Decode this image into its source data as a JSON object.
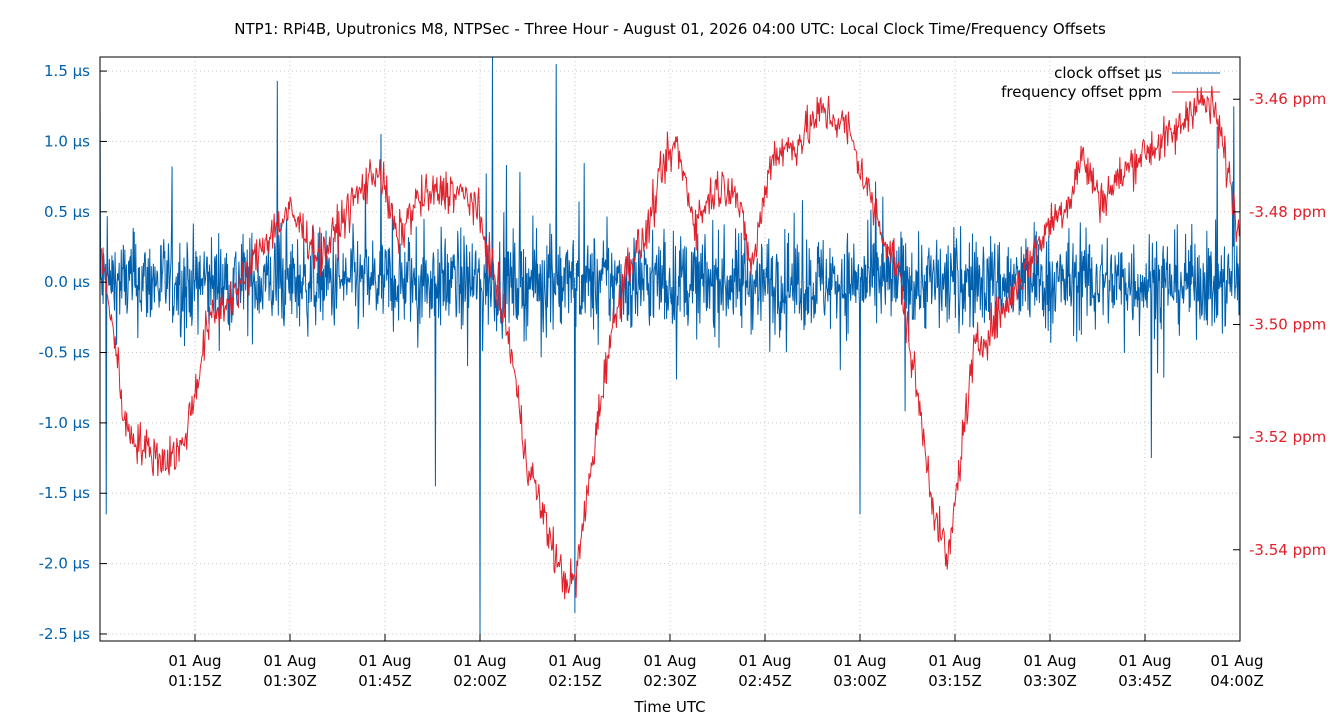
{
  "chart_data": {
    "type": "line",
    "title": "NTP1: RPi4B, Uputronics M8, NTPSec - Three Hour - August 01, 2026 04:00 UTC: Local Clock Time/Frequency Offsets",
    "xlabel": "Time UTC",
    "x_range": [
      "2026-08-01T01:00Z",
      "2026-08-01T04:00Z"
    ],
    "x_ticks": [
      {
        "date": "01 Aug",
        "time": "01:15Z"
      },
      {
        "date": "01 Aug",
        "time": "01:30Z"
      },
      {
        "date": "01 Aug",
        "time": "01:45Z"
      },
      {
        "date": "01 Aug",
        "time": "02:00Z"
      },
      {
        "date": "01 Aug",
        "time": "02:15Z"
      },
      {
        "date": "01 Aug",
        "time": "02:30Z"
      },
      {
        "date": "01 Aug",
        "time": "02:45Z"
      },
      {
        "date": "01 Aug",
        "time": "03:00Z"
      },
      {
        "date": "01 Aug",
        "time": "03:15Z"
      },
      {
        "date": "01 Aug",
        "time": "03:30Z"
      },
      {
        "date": "01 Aug",
        "time": "03:45Z"
      },
      {
        "date": "01 Aug",
        "time": "04:00Z"
      }
    ],
    "y_left": {
      "unit": "µs",
      "range": [
        -2.55,
        1.6
      ],
      "ticks": [
        "1.5 µs",
        "1.0 µs",
        "0.5 µs",
        "0.0 µs",
        "-0.5 µs",
        "-1.0 µs",
        "-1.5 µs",
        "-2.0 µs",
        "-2.5 µs"
      ],
      "color": "#0060ad"
    },
    "y_right": {
      "unit": "ppm",
      "range": [
        -3.5562,
        -3.4525
      ],
      "ticks": [
        "-3.46 ppm",
        "-3.48 ppm",
        "-3.50 ppm",
        "-3.52 ppm",
        "-3.54 ppm"
      ],
      "color": "#e0202a"
    },
    "grid": true,
    "legend_position": "top-right",
    "series": [
      {
        "name": "clock offset µs",
        "axis": "left",
        "color": "#0060ad",
        "noise_amplitude": 0.35,
        "max": 1.6,
        "min": -2.55,
        "spikes": [
          {
            "time": "01:00Z",
            "value": 1.35
          },
          {
            "time": "01:01Z",
            "value": -1.65
          },
          {
            "time": "01:28Z",
            "value": 1.43
          },
          {
            "time": "01:53Z",
            "value": -1.45
          },
          {
            "time": "02:00Z",
            "value": -2.55
          },
          {
            "time": "02:02Z",
            "value": 1.6
          },
          {
            "time": "02:12Z",
            "value": 1.55
          },
          {
            "time": "02:15Z",
            "value": -2.35
          },
          {
            "time": "03:00Z",
            "value": -1.65
          },
          {
            "time": "03:46Z",
            "value": -1.25
          },
          {
            "time": "03:59Z",
            "value": 1.25
          }
        ]
      },
      {
        "name": "frequency offset ppm",
        "axis": "right",
        "color": "#e0202a",
        "noise_amplitude": 0.004,
        "points": [
          [
            "01:00Z",
            -3.486
          ],
          [
            "01:02Z",
            -3.5
          ],
          [
            "01:04Z",
            -3.518
          ],
          [
            "01:07Z",
            -3.522
          ],
          [
            "01:10Z",
            -3.524
          ],
          [
            "01:13Z",
            -3.522
          ],
          [
            "01:15Z",
            -3.512
          ],
          [
            "01:17Z",
            -3.5
          ],
          [
            "01:20Z",
            -3.496
          ],
          [
            "01:23Z",
            -3.492
          ],
          [
            "01:26Z",
            -3.485
          ],
          [
            "01:30Z",
            -3.48
          ],
          [
            "01:35Z",
            -3.488
          ],
          [
            "01:40Z",
            -3.478
          ],
          [
            "01:44Z",
            -3.472
          ],
          [
            "01:47Z",
            -3.485
          ],
          [
            "01:50Z",
            -3.478
          ],
          [
            "01:55Z",
            -3.476
          ],
          [
            "01:59Z",
            -3.478
          ],
          [
            "02:02Z",
            -3.49
          ],
          [
            "02:05Z",
            -3.505
          ],
          [
            "02:07Z",
            -3.522
          ],
          [
            "02:10Z",
            -3.534
          ],
          [
            "02:13Z",
            -3.545
          ],
          [
            "02:15Z",
            -3.546
          ],
          [
            "02:17Z",
            -3.53
          ],
          [
            "02:20Z",
            -3.506
          ],
          [
            "02:23Z",
            -3.49
          ],
          [
            "02:26Z",
            -3.485
          ],
          [
            "02:29Z",
            -3.472
          ],
          [
            "02:31Z",
            -3.468
          ],
          [
            "02:34Z",
            -3.482
          ],
          [
            "02:37Z",
            -3.476
          ],
          [
            "02:40Z",
            -3.475
          ],
          [
            "02:43Z",
            -3.49
          ],
          [
            "02:46Z",
            -3.47
          ],
          [
            "02:50Z",
            -3.468
          ],
          [
            "02:54Z",
            -3.462
          ],
          [
            "02:58Z",
            -3.465
          ],
          [
            "03:00Z",
            -3.472
          ],
          [
            "03:03Z",
            -3.482
          ],
          [
            "03:06Z",
            -3.49
          ],
          [
            "03:09Z",
            -3.512
          ],
          [
            "03:12Z",
            -3.535
          ],
          [
            "03:14Z",
            -3.542
          ],
          [
            "03:16Z",
            -3.522
          ],
          [
            "03:18Z",
            -3.505
          ],
          [
            "03:21Z",
            -3.5
          ],
          [
            "03:24Z",
            -3.495
          ],
          [
            "03:27Z",
            -3.488
          ],
          [
            "03:30Z",
            -3.482
          ],
          [
            "03:33Z",
            -3.478
          ],
          [
            "03:35Z",
            -3.47
          ],
          [
            "03:38Z",
            -3.478
          ],
          [
            "03:41Z",
            -3.474
          ],
          [
            "03:44Z",
            -3.47
          ],
          [
            "03:47Z",
            -3.468
          ],
          [
            "03:50Z",
            -3.466
          ],
          [
            "03:53Z",
            -3.46
          ],
          [
            "03:56Z",
            -3.462
          ],
          [
            "03:58Z",
            -3.472
          ],
          [
            "04:00Z",
            -3.485
          ]
        ]
      }
    ]
  }
}
